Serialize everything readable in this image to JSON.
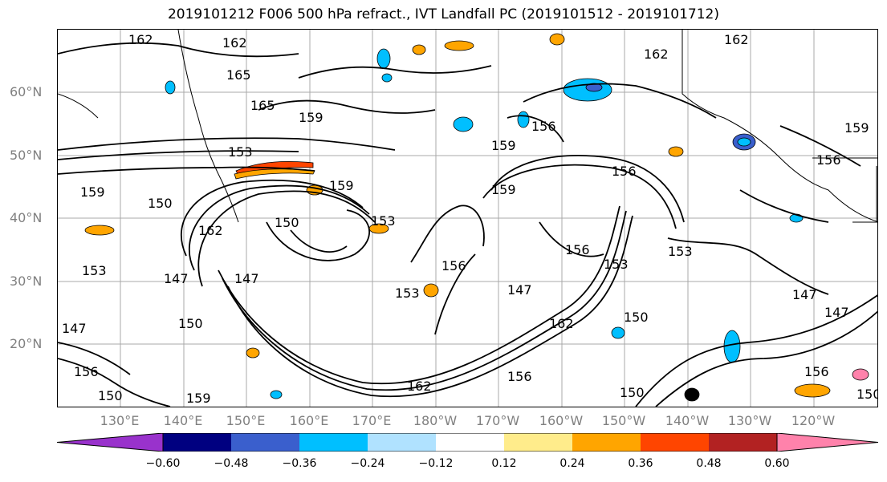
{
  "title": "2019101212 F006 500 hPa refract., IVT Landfall PC (2019101512 - 2019101712)",
  "lat_labels": [
    "60°N",
    "50°N",
    "40°N",
    "30°N",
    "20°N"
  ],
  "lon_labels": [
    "130°E",
    "140°E",
    "150°E",
    "160°E",
    "170°E",
    "180°W",
    "170°W",
    "160°W",
    "150°W",
    "140°W",
    "130°W",
    "120°W"
  ],
  "contour_labels": [
    "162",
    "162",
    "165",
    "165",
    "159",
    "153",
    "159",
    "150",
    "153",
    "162",
    "150",
    "147",
    "147",
    "150",
    "147",
    "156",
    "159",
    "156",
    "153",
    "156",
    "159",
    "153",
    "156",
    "147",
    "153",
    "153",
    "162",
    "162",
    "156",
    "150",
    "150",
    "159",
    "162",
    "156",
    "159",
    "156",
    "147",
    "147",
    "150",
    "156",
    "159",
    "162",
    "150"
  ],
  "colorbar": {
    "colors": [
      "#9932CC",
      "#000080",
      "#3A5FCD",
      "#00BFFF",
      "#B0E2FF",
      "#FFFFFF",
      "#FFEC8B",
      "#FFA500",
      "#FF4500",
      "#B22222",
      "#FF82AB"
    ],
    "ticks": [
      "−0.60",
      "−0.48",
      "−0.36",
      "−0.24",
      "−0.12",
      "0.12",
      "0.24",
      "0.36",
      "0.48",
      "0.60"
    ]
  }
}
